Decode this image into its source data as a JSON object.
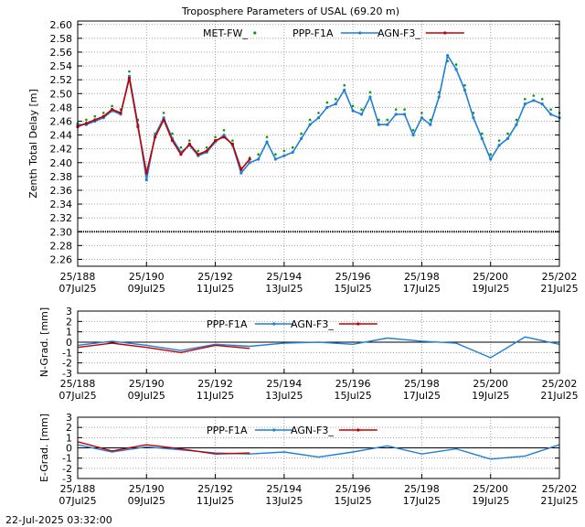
{
  "title": "Troposphere Parameters of USAL (69.20 m)",
  "footer_timestamp": "22-Jul-2025 03:32:00",
  "chart_data": [
    {
      "type": "line",
      "ylabel": "Zenth Total Delay [m]",
      "ylim": [
        2.25,
        2.605
      ],
      "yticks": [
        2.26,
        2.28,
        2.3,
        2.32,
        2.34,
        2.36,
        2.38,
        2.4,
        2.42,
        2.44,
        2.46,
        2.48,
        2.5,
        2.52,
        2.54,
        2.56,
        2.58,
        2.6
      ],
      "ytick_labels": [
        "2.26",
        "2.28",
        "2.30",
        "2.32",
        "2.34",
        "2.36",
        "2.38",
        "2.40",
        "2.42",
        "2.44",
        "2.46",
        "2.48",
        "2.50",
        "2.52",
        "2.54",
        "2.56",
        "2.58",
        "2.60"
      ],
      "xlim": [
        188,
        202
      ],
      "xticks": [
        188,
        190,
        192,
        194,
        196,
        198,
        200,
        202
      ],
      "xtick_labels": [
        [
          "25/188",
          "07Jul25"
        ],
        [
          "25/190",
          "09Jul25"
        ],
        [
          "25/192",
          "11Jul25"
        ],
        [
          "25/194",
          "13Jul25"
        ],
        [
          "25/196",
          "15Jul25"
        ],
        [
          "25/198",
          "17Jul25"
        ],
        [
          "25/200",
          "19Jul25"
        ],
        [
          "25/202",
          "21Jul25"
        ]
      ],
      "grid": true,
      "legend": "top",
      "series": [
        {
          "name": "MET-FW_",
          "color": "#00a000",
          "style": "dots",
          "x": [
            188.0,
            188.25,
            188.5,
            188.75,
            189.0,
            189.25,
            189.5,
            189.75,
            190.0,
            190.25,
            190.5,
            190.75,
            191.0,
            191.25,
            191.5,
            191.75,
            192.0,
            192.25,
            192.5,
            192.75,
            193.0,
            193.25,
            193.5,
            193.75,
            194.0,
            194.25,
            194.5,
            194.75,
            195.0,
            195.25,
            195.5,
            195.75,
            196.0,
            196.25,
            196.5,
            196.75,
            197.0,
            197.25,
            197.5,
            197.75,
            198.0,
            198.25,
            198.5,
            198.75,
            199.0,
            199.25,
            199.5,
            199.75,
            200.0,
            200.25,
            200.5,
            200.75,
            201.0,
            201.25,
            201.5,
            201.75,
            202.0
          ],
          "y": [
            2.455,
            2.46,
            2.465,
            2.47,
            2.48,
            2.475,
            2.53,
            2.46,
            2.38,
            2.44,
            2.47,
            2.44,
            2.42,
            2.43,
            2.415,
            2.42,
            2.435,
            2.445,
            2.43,
            2.39,
            2.405,
            2.41,
            2.435,
            2.41,
            2.415,
            2.42,
            2.44,
            2.46,
            2.47,
            2.485,
            2.49,
            2.51,
            2.48,
            2.475,
            2.5,
            2.46,
            2.46,
            2.475,
            2.475,
            2.445,
            2.47,
            2.46,
            2.5,
            2.545,
            2.54,
            2.51,
            2.47,
            2.44,
            2.41,
            2.43,
            2.44,
            2.46,
            2.49,
            2.495,
            2.49,
            2.475,
            2.47
          ]
        },
        {
          "name": "PPP-F1A",
          "color": "#1e7fd6",
          "style": "line-markers",
          "x": [
            188.0,
            188.25,
            188.5,
            188.75,
            189.0,
            189.25,
            189.5,
            189.75,
            190.0,
            190.25,
            190.5,
            190.75,
            191.0,
            191.25,
            191.5,
            191.75,
            192.0,
            192.25,
            192.5,
            192.75,
            193.0,
            193.25,
            193.5,
            193.75,
            194.0,
            194.25,
            194.5,
            194.75,
            195.0,
            195.25,
            195.5,
            195.75,
            196.0,
            196.25,
            196.5,
            196.75,
            197.0,
            197.25,
            197.5,
            197.75,
            198.0,
            198.25,
            198.5,
            198.75,
            199.0,
            199.25,
            199.5,
            199.75,
            200.0,
            200.25,
            200.5,
            200.75,
            201.0,
            201.25,
            201.5,
            201.75,
            202.0
          ],
          "y": [
            2.455,
            2.455,
            2.46,
            2.465,
            2.475,
            2.47,
            2.525,
            2.455,
            2.375,
            2.44,
            2.465,
            2.435,
            2.415,
            2.425,
            2.41,
            2.415,
            2.43,
            2.44,
            2.425,
            2.385,
            2.4,
            2.405,
            2.43,
            2.405,
            2.41,
            2.415,
            2.435,
            2.455,
            2.465,
            2.48,
            2.485,
            2.505,
            2.475,
            2.47,
            2.495,
            2.455,
            2.455,
            2.47,
            2.47,
            2.44,
            2.465,
            2.455,
            2.495,
            2.555,
            2.535,
            2.505,
            2.465,
            2.435,
            2.405,
            2.425,
            2.435,
            2.455,
            2.485,
            2.49,
            2.485,
            2.47,
            2.465
          ]
        },
        {
          "name": "AGN-F3_",
          "color": "#c00000",
          "style": "line-markers",
          "x": [
            188.0,
            188.25,
            188.5,
            188.75,
            189.0,
            189.25,
            189.5,
            189.75,
            190.0,
            190.25,
            190.5,
            190.75,
            191.0,
            191.25,
            191.5,
            191.75,
            192.0,
            192.25,
            192.5,
            192.75,
            193.0
          ],
          "y": [
            2.452,
            2.457,
            2.462,
            2.467,
            2.477,
            2.472,
            2.522,
            2.452,
            2.385,
            2.437,
            2.462,
            2.432,
            2.412,
            2.427,
            2.412,
            2.417,
            2.432,
            2.437,
            2.427,
            2.39,
            2.405
          ]
        },
        {
          "name": "",
          "color": "#000000",
          "style": "flat-dotted",
          "x": [
            188.0,
            202.0
          ],
          "y": [
            2.3,
            2.3
          ]
        }
      ]
    },
    {
      "type": "line",
      "ylabel": "N-Grad. [mm]",
      "ylim": [
        -3,
        3
      ],
      "yticks": [
        -3,
        -2,
        -1,
        0,
        1,
        2,
        3
      ],
      "ytick_labels": [
        "-3",
        "-2",
        "-1",
        "0",
        "1",
        "2",
        "3"
      ],
      "xlim": [
        188,
        202
      ],
      "xticks": [
        188,
        190,
        192,
        194,
        196,
        198,
        200,
        202
      ],
      "xtick_labels": [
        [
          "25/188",
          "07Jul25"
        ],
        [
          "25/190",
          "09Jul25"
        ],
        [
          "25/192",
          "11Jul25"
        ],
        [
          "25/194",
          "13Jul25"
        ],
        [
          "25/196",
          "15Jul25"
        ],
        [
          "25/198",
          "17Jul25"
        ],
        [
          "25/200",
          "19Jul25"
        ],
        [
          "25/202",
          "21Jul25"
        ]
      ],
      "grid": true,
      "legend": "top",
      "series": [
        {
          "name": "PPP-F1A",
          "color": "#1e7fd6",
          "x": [
            188,
            189,
            190,
            191,
            192,
            193,
            194,
            195,
            196,
            197,
            198,
            199,
            200,
            201,
            202
          ],
          "y": [
            -0.3,
            0.1,
            -0.3,
            -0.8,
            -0.2,
            -0.4,
            -0.1,
            0.0,
            -0.2,
            0.4,
            0.1,
            -0.1,
            -1.5,
            0.5,
            -0.2
          ]
        },
        {
          "name": "AGN-F3_",
          "color": "#c00000",
          "x": [
            188,
            189,
            190,
            191,
            192,
            193
          ],
          "y": [
            -0.5,
            -0.1,
            -0.5,
            -1.0,
            -0.3,
            -0.6
          ]
        }
      ]
    },
    {
      "type": "line",
      "ylabel": "E-Grad. [mm]",
      "ylim": [
        -3,
        3
      ],
      "yticks": [
        -3,
        -2,
        -1,
        0,
        1,
        2,
        3
      ],
      "ytick_labels": [
        "-3",
        "-2",
        "-1",
        "0",
        "1",
        "2",
        "3"
      ],
      "xlim": [
        188,
        202
      ],
      "xticks": [
        188,
        190,
        192,
        194,
        196,
        198,
        200,
        202
      ],
      "xtick_labels": [
        [
          "25/188",
          "07Jul25"
        ],
        [
          "25/190",
          "09Jul25"
        ],
        [
          "25/192",
          "11Jul25"
        ],
        [
          "25/194",
          "13Jul25"
        ],
        [
          "25/196",
          "15Jul25"
        ],
        [
          "25/198",
          "17Jul25"
        ],
        [
          "25/200",
          "19Jul25"
        ],
        [
          "25/202",
          "21Jul25"
        ]
      ],
      "grid": true,
      "legend": "top",
      "series": [
        {
          "name": "PPP-F1A",
          "color": "#1e7fd6",
          "x": [
            188,
            189,
            190,
            191,
            192,
            193,
            194,
            195,
            196,
            197,
            198,
            199,
            200,
            201,
            202
          ],
          "y": [
            0.3,
            -0.4,
            0.1,
            -0.2,
            -0.5,
            -0.6,
            -0.4,
            -0.9,
            -0.4,
            0.2,
            -0.6,
            -0.1,
            -1.1,
            -0.8,
            0.3
          ]
        },
        {
          "name": "AGN-F3_",
          "color": "#c00000",
          "x": [
            188,
            189,
            190,
            191,
            192,
            193
          ],
          "y": [
            0.6,
            -0.3,
            0.3,
            -0.1,
            -0.6,
            -0.5
          ]
        }
      ]
    }
  ]
}
